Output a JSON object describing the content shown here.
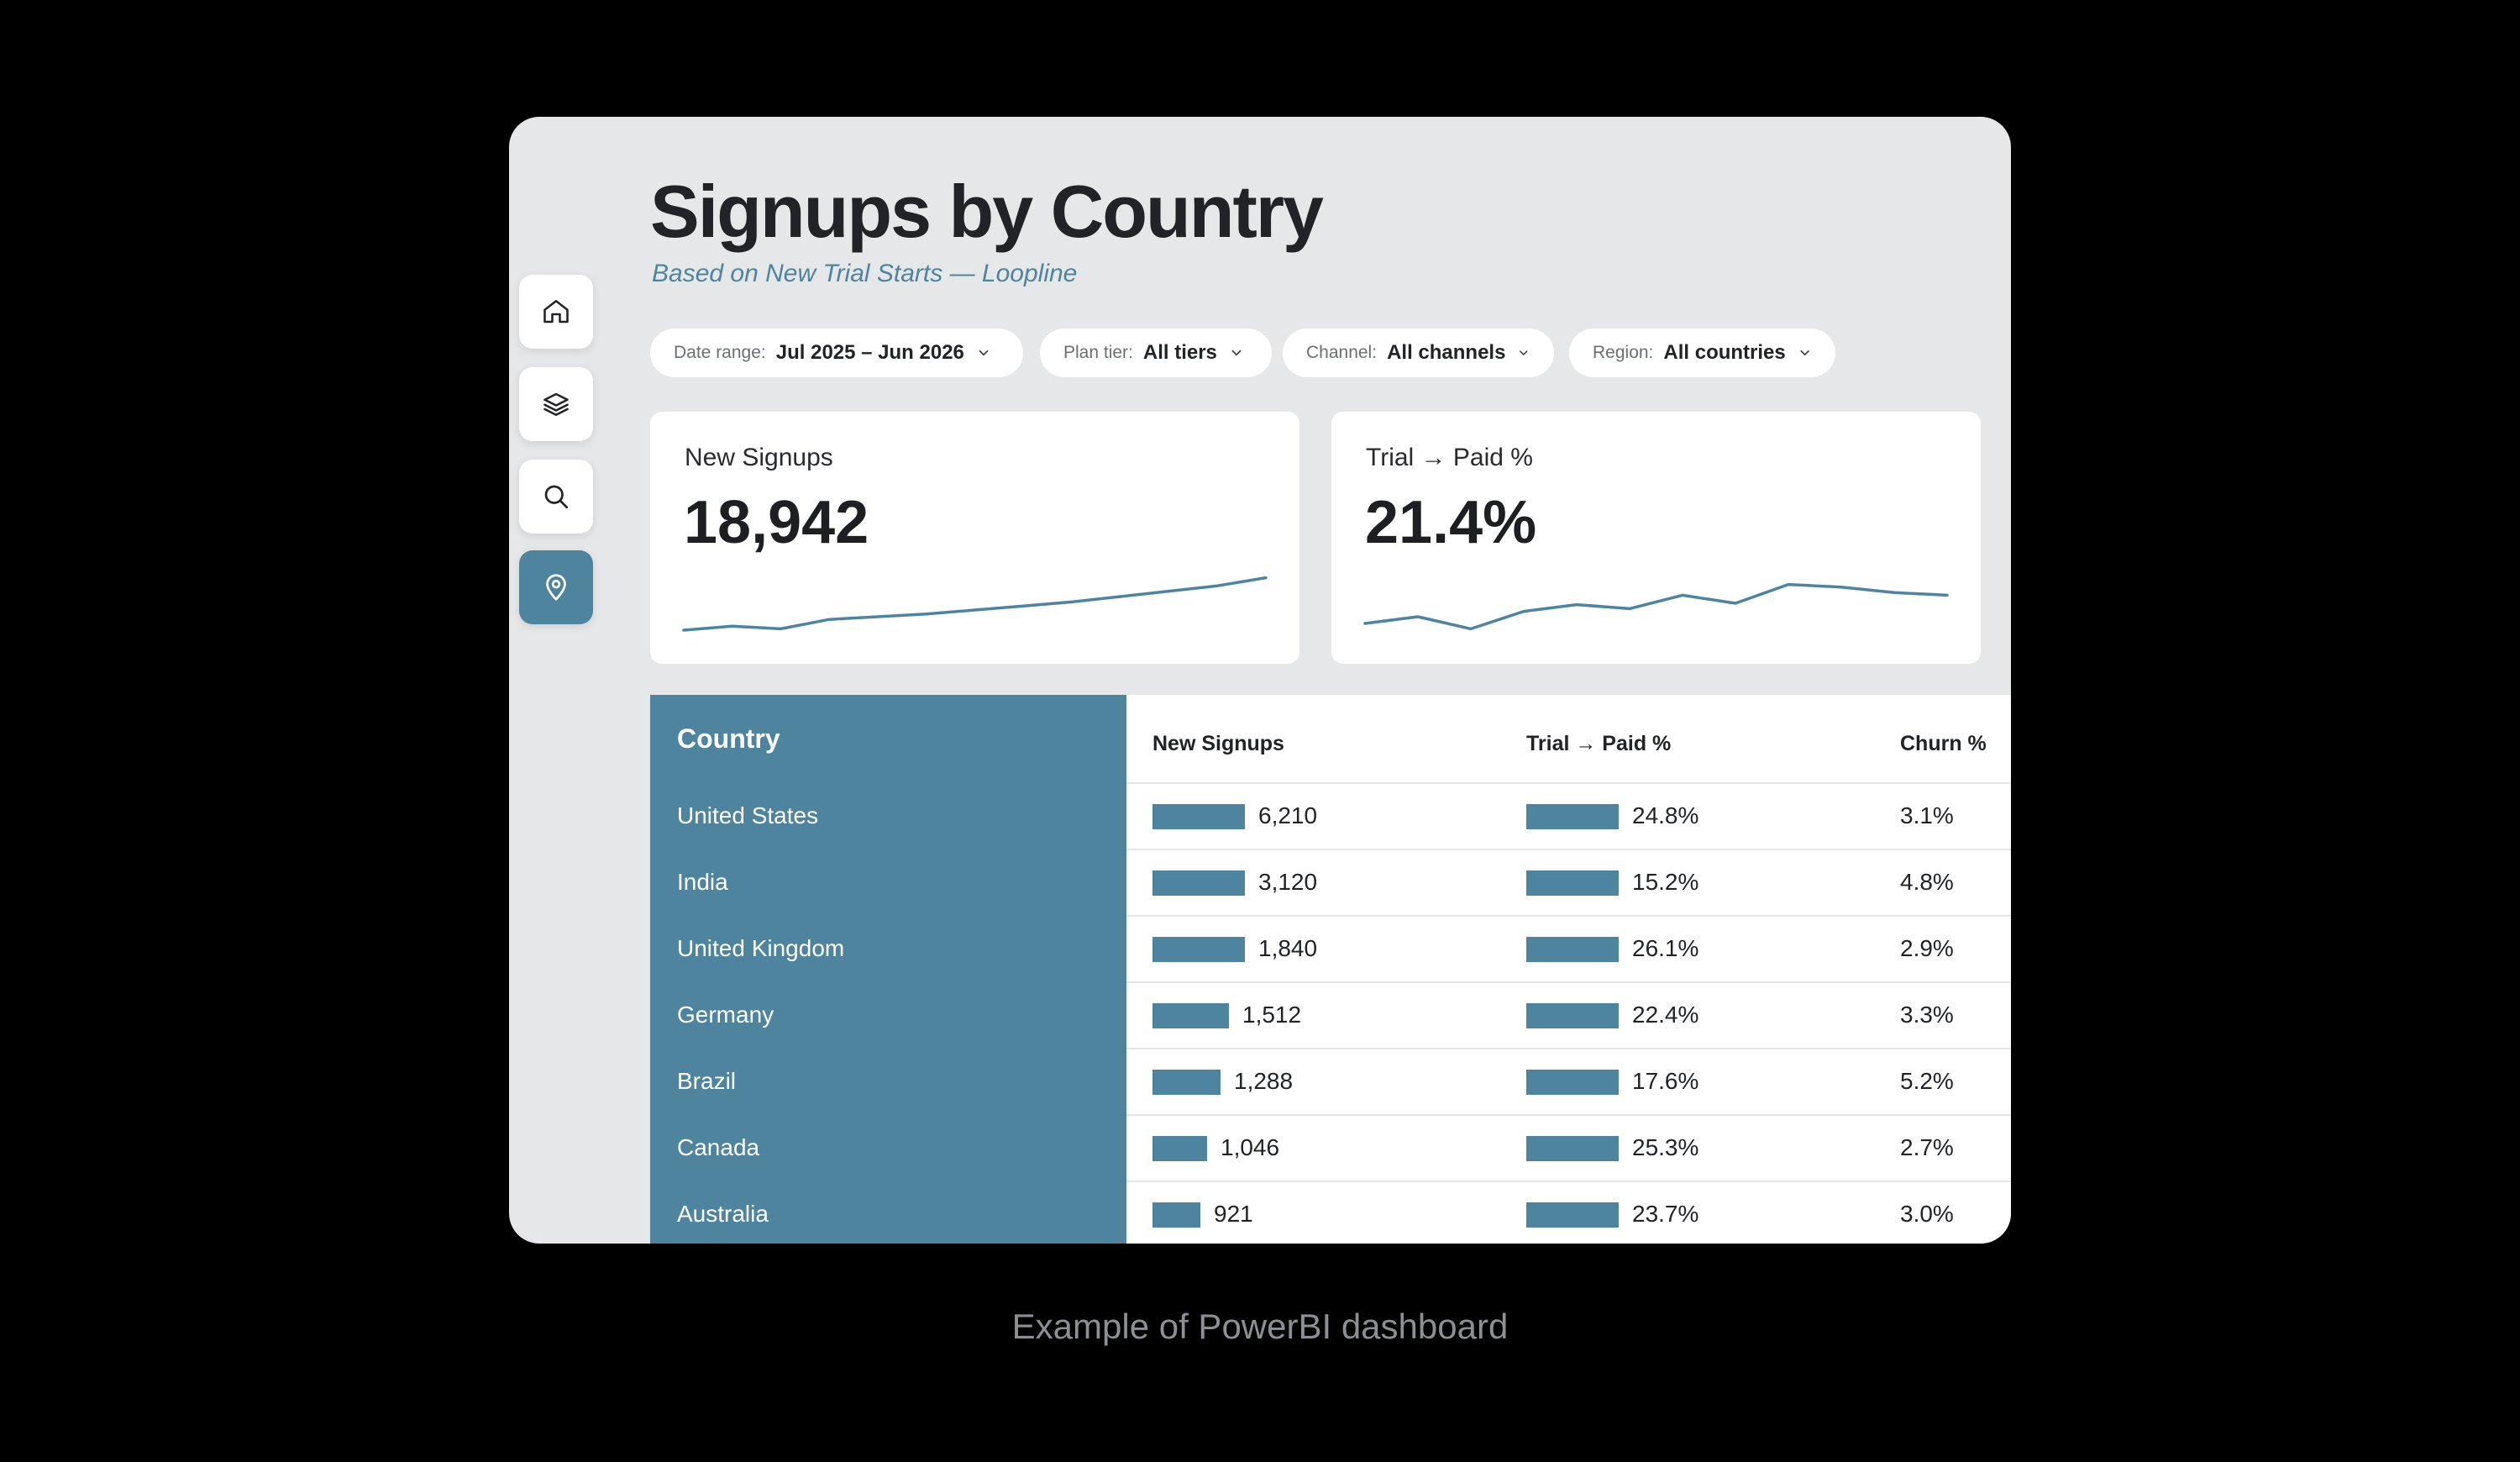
{
  "header": {
    "title": "Signups by Country",
    "subtitle": "Based on New Trial Starts — Loopline"
  },
  "sidebar": {
    "items": [
      {
        "icon": "home-icon",
        "active": false
      },
      {
        "icon": "layers-icon",
        "active": false
      },
      {
        "icon": "search-icon",
        "active": false
      },
      {
        "icon": "map-pin-icon",
        "active": true
      }
    ]
  },
  "filters": [
    {
      "label": "Date range:",
      "value": "Jul 2025 – Jun 2026"
    },
    {
      "label": "Plan tier:",
      "value": "All tiers"
    },
    {
      "label": "Channel:",
      "value": "All channels"
    },
    {
      "label": "Region:",
      "value": "All countries"
    }
  ],
  "kpis": [
    {
      "label": "New Signups",
      "value": "18,942",
      "trend": [
        10,
        16,
        12,
        26,
        30,
        34,
        40,
        46,
        52,
        60,
        68,
        76,
        88
      ]
    },
    {
      "label": "Trial → Paid %",
      "value": "21.4%",
      "trend": [
        20,
        30,
        12,
        38,
        48,
        42,
        62,
        50,
        78,
        74,
        66,
        62
      ]
    }
  ],
  "table": {
    "columns": [
      "Country",
      "New Signups",
      "Trial → Paid %",
      "Churn %"
    ],
    "rows": [
      {
        "country": "United States",
        "signups": "6,210",
        "signups_bar": 1.0,
        "conv": "24.8%",
        "conv_bar": 1.0,
        "churn": "3.1%"
      },
      {
        "country": "India",
        "signups": "3,120",
        "signups_bar": 1.0,
        "conv": "15.2%",
        "conv_bar": 1.0,
        "churn": "4.8%"
      },
      {
        "country": "United Kingdom",
        "signups": "1,840",
        "signups_bar": 1.0,
        "conv": "26.1%",
        "conv_bar": 1.0,
        "churn": "2.9%"
      },
      {
        "country": "Germany",
        "signups": "1,512",
        "signups_bar": 0.83,
        "conv": "22.4%",
        "conv_bar": 1.0,
        "churn": "3.3%"
      },
      {
        "country": "Brazil",
        "signups": "1,288",
        "signups_bar": 0.74,
        "conv": "17.6%",
        "conv_bar": 1.0,
        "churn": "5.2%"
      },
      {
        "country": "Canada",
        "signups": "1,046",
        "signups_bar": 0.59,
        "conv": "25.3%",
        "conv_bar": 1.0,
        "churn": "2.7%"
      },
      {
        "country": "Australia",
        "signups": "921",
        "signups_bar": 0.52,
        "conv": "23.7%",
        "conv_bar": 1.0,
        "churn": "3.0%"
      }
    ]
  },
  "caption": "Example of PowerBI dashboard",
  "colors": {
    "accent": "#4e849e",
    "background": "#e6e7e9",
    "text": "#222326"
  }
}
